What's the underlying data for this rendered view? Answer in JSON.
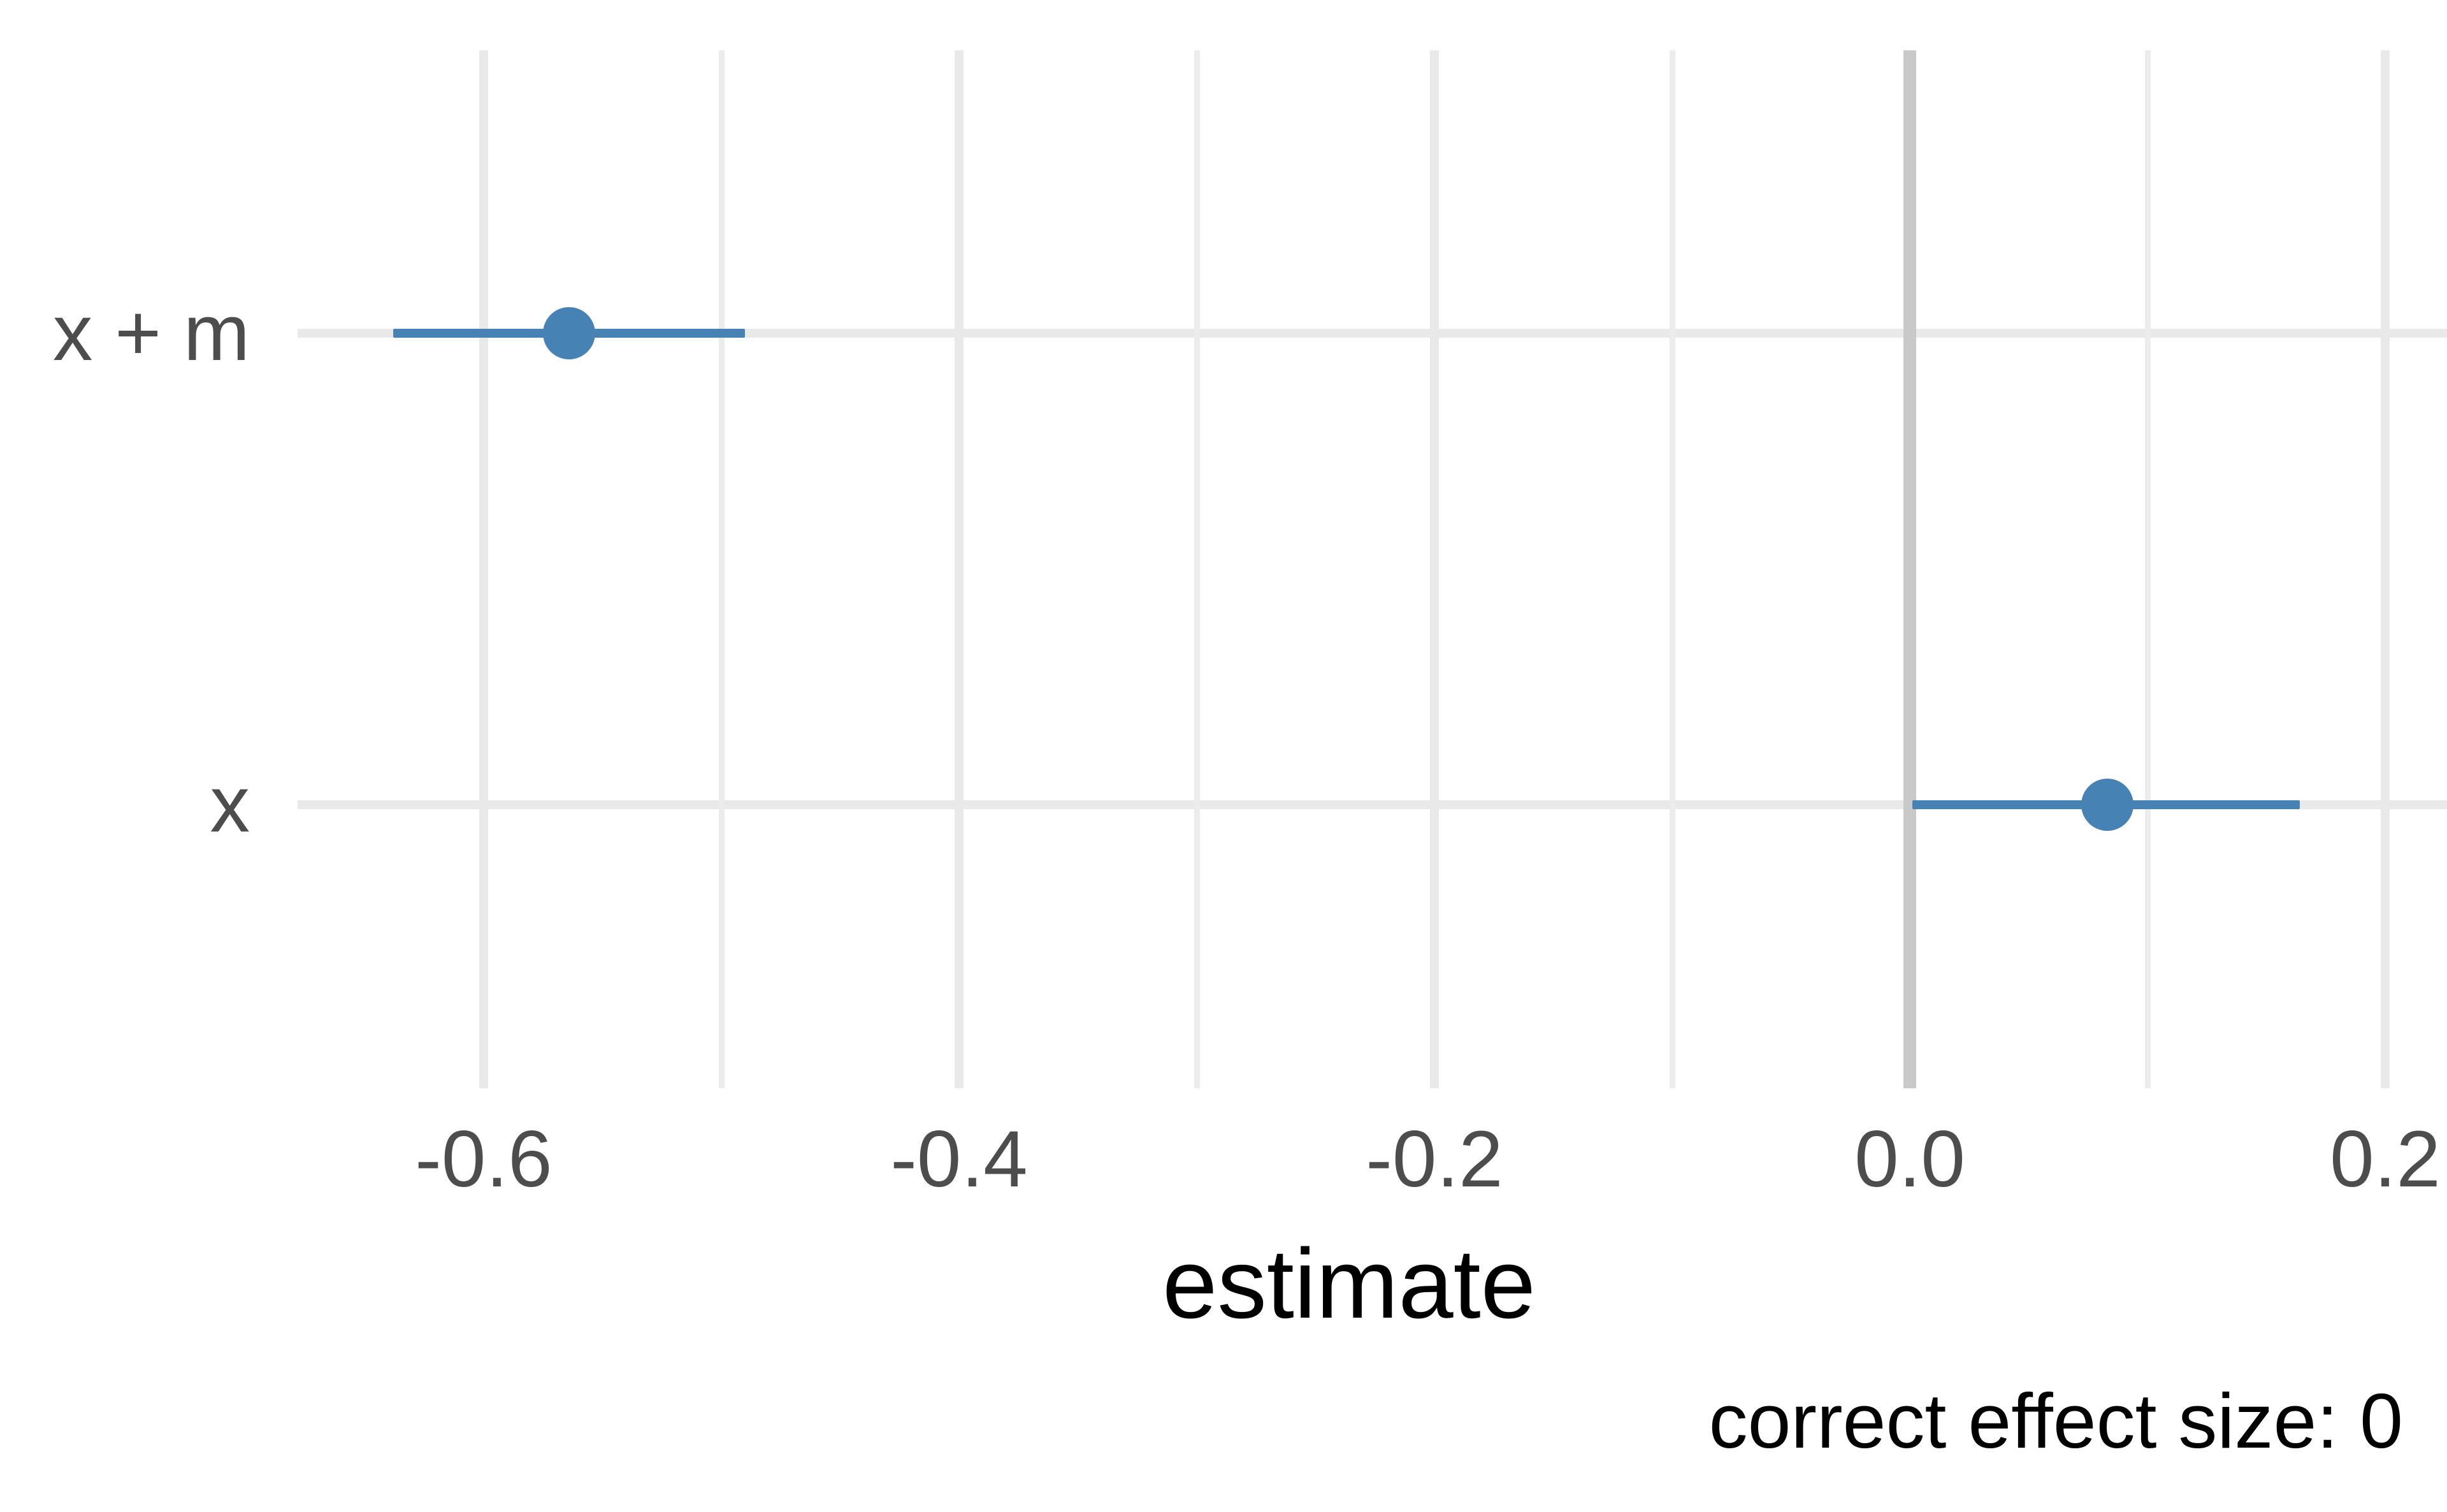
{
  "chart_data": {
    "type": "scatter",
    "subtype": "pointrange-coefficient-plot",
    "orientation": "horizontal",
    "title": "",
    "xlabel": "estimate",
    "ylabel": "",
    "caption": "correct effect size: 0",
    "categories": [
      "x + m",
      "x"
    ],
    "series": [
      {
        "name": "estimate",
        "points": [
          {
            "category": "x + m",
            "estimate": -0.564,
            "ci_low": -0.638,
            "ci_high": -0.49
          },
          {
            "category": "x",
            "estimate": 0.083,
            "ci_low": 0.001,
            "ci_high": 0.164
          }
        ]
      }
    ],
    "x_ticks": [
      -0.6,
      -0.4,
      -0.2,
      0.0,
      0.2
    ],
    "x_tick_labels": [
      "-0.6",
      "-0.4",
      "-0.2",
      "0.0",
      "0.2"
    ],
    "x_minor_ticks": [
      -0.5,
      -0.3,
      -0.1,
      0.1
    ],
    "xlim": [
      -0.678,
      0.226
    ],
    "reference_line_x": 0,
    "grid": true,
    "legend": false
  },
  "colors": {
    "point": "#4682b4",
    "ci_bar": "#4682b4",
    "grid_major": "#e9e9e9",
    "grid_minor": "#ececec",
    "reference_line": "#c9c9c9",
    "axis_text": "#4d4d4d",
    "title_text": "#000000",
    "background": "#ffffff"
  }
}
